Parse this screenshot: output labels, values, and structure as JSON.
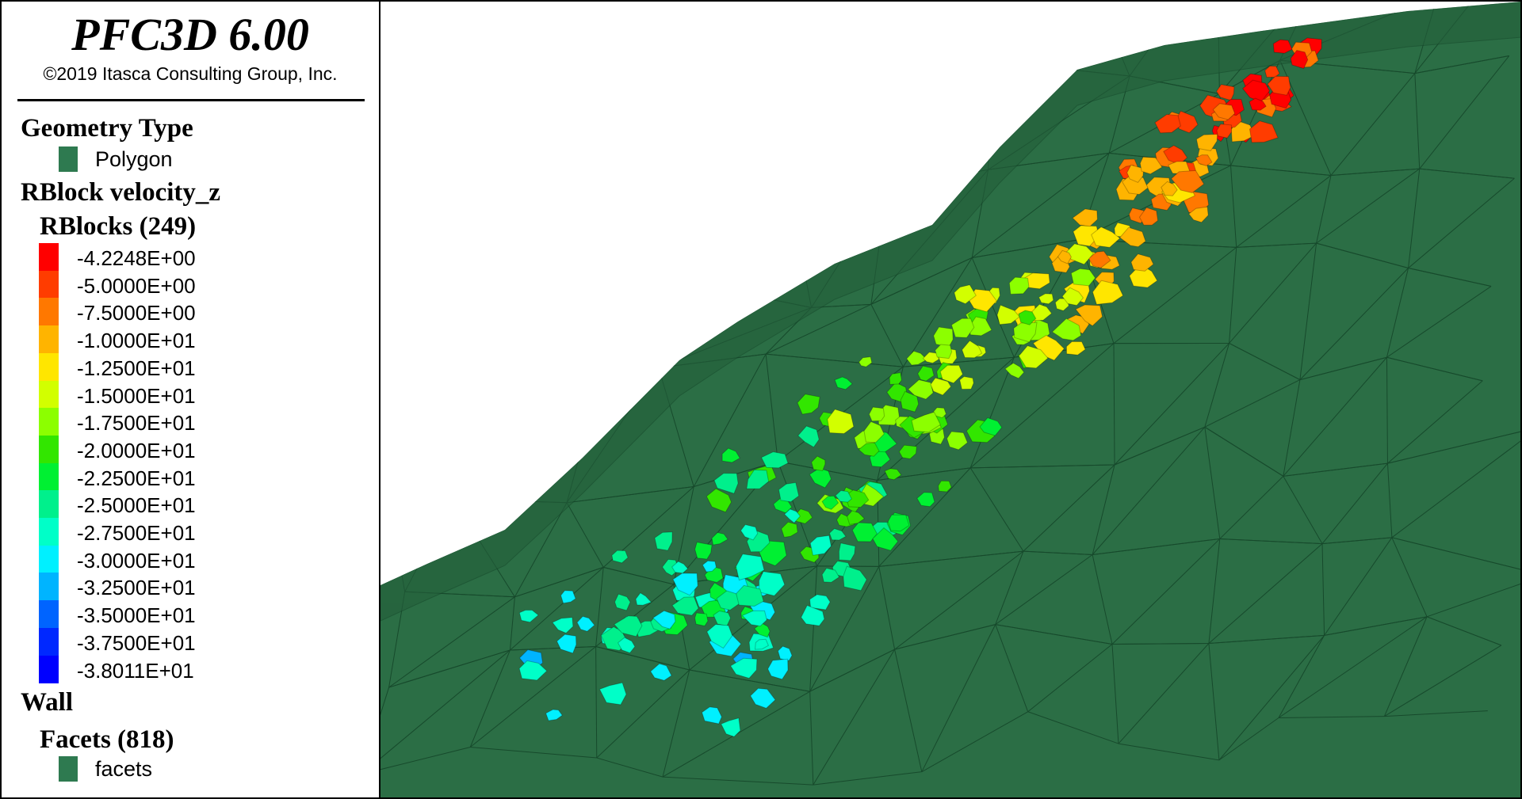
{
  "header": {
    "title": "PFC3D 6.00",
    "copyright": "©2019 Itasca Consulting Group, Inc."
  },
  "legend": {
    "geometry": {
      "heading": "Geometry Type",
      "item": "Polygon",
      "color": "#2e7a50"
    },
    "rblock": {
      "heading": "RBlock velocity_z",
      "group": "RBlocks (249)",
      "scale": [
        {
          "label": "-4.2248E+00",
          "color": "#ff0000"
        },
        {
          "label": "-5.0000E+00",
          "color": "#ff3c00"
        },
        {
          "label": "-7.5000E+00",
          "color": "#ff7800"
        },
        {
          "label": "-1.0000E+01",
          "color": "#ffb400"
        },
        {
          "label": "-1.2500E+01",
          "color": "#ffe600"
        },
        {
          "label": "-1.5000E+01",
          "color": "#d2ff00"
        },
        {
          "label": "-1.7500E+01",
          "color": "#8cff00"
        },
        {
          "label": "-2.0000E+01",
          "color": "#32e600"
        },
        {
          "label": "-2.2500E+01",
          "color": "#00f032"
        },
        {
          "label": "-2.5000E+01",
          "color": "#00f08c"
        },
        {
          "label": "-2.7500E+01",
          "color": "#00ffc8"
        },
        {
          "label": "-3.0000E+01",
          "color": "#00f0ff"
        },
        {
          "label": "-3.2500E+01",
          "color": "#00b4ff"
        },
        {
          "label": "-3.5000E+01",
          "color": "#0064ff"
        },
        {
          "label": "-3.7500E+01",
          "color": "#0028ff"
        },
        {
          "label": "-3.8011E+01",
          "color": "#0000ff"
        }
      ]
    },
    "wall": {
      "heading": "Wall",
      "group": "Facets (818)",
      "item": "facets",
      "color": "#2e7a50"
    }
  }
}
